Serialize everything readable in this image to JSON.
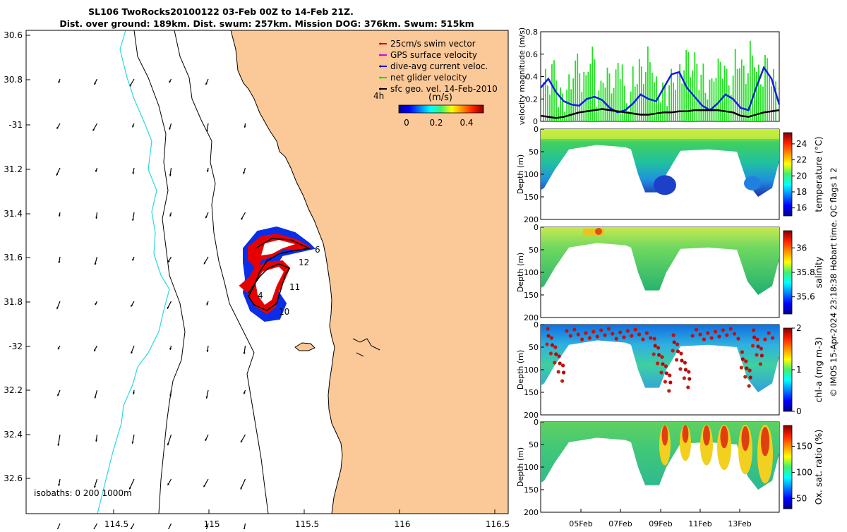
{
  "title": {
    "line1": "SL106 TwoRocks20100122 03-Feb 00Z to 14-Feb 21Z.",
    "line2": "Dist. over ground: 189km. Dist. swum: 257km. Mission DOG: 376km. Swum: 515km"
  },
  "map": {
    "lat_labels": [
      "30.6",
      "30.8",
      "-31",
      "31.2",
      "31.4",
      "31.6",
      "31.8",
      "-32",
      "32.2",
      "32.4",
      "32.6"
    ],
    "lon_labels": [
      "114.5",
      "115",
      "115.5",
      "116",
      "116.5"
    ],
    "lon_range": [
      114.0,
      116.55
    ],
    "lat_range": [
      -32.75,
      -30.55
    ],
    "legend": [
      {
        "label": "25cm/s swim vector",
        "color": "#e00000"
      },
      {
        "label": "GPS surface velocity",
        "color": "#e000e0"
      },
      {
        "label": "dive-avg current veloc.",
        "color": "#0000e0"
      },
      {
        "label": "net glider velocity",
        "color": "#00e000"
      },
      {
        "label": "sfc geo. vel. 14-Feb-2010",
        "color": "#000000"
      }
    ],
    "time_step_label": "4h",
    "colorbar_unit": "(m/s)",
    "colorbar_ticks": [
      "0",
      "0.2",
      "0.4"
    ],
    "isobaths_label": "isobaths: 0   200  1000m",
    "day_labels": [
      "4",
      "6",
      "10",
      "11",
      "12"
    ],
    "colors": {
      "land": "#fbc898",
      "coast200": "#000000",
      "isobath1000": "#27d9df"
    }
  },
  "chart_data": [
    {
      "type": "line",
      "ylabel": "velocity magnitude (m/s)",
      "ylim": [
        0,
        0.8
      ],
      "yticks": [
        "0",
        "0.2",
        "0.4",
        "0.6",
        "0.8"
      ],
      "x_range": [
        "03-Feb",
        "14-Feb 21Z"
      ],
      "series": [
        {
          "color": "#0000e0",
          "values": [
            0.3,
            0.38,
            0.26,
            0.18,
            0.15,
            0.14,
            0.2,
            0.22,
            0.19,
            0.12,
            0.08,
            0.1,
            0.16,
            0.24,
            0.2,
            0.18,
            0.3,
            0.42,
            0.44,
            0.3,
            0.22,
            0.14,
            0.1,
            0.16,
            0.24,
            0.2,
            0.12,
            0.1,
            0.3,
            0.48,
            0.38,
            0.15
          ]
        },
        {
          "color": "#000000",
          "values": [
            0.05,
            0.04,
            0.03,
            0.04,
            0.06,
            0.08,
            0.09,
            0.1,
            0.11,
            0.1,
            0.09,
            0.08,
            0.07,
            0.06,
            0.06,
            0.07,
            0.08,
            0.08,
            0.09,
            0.09,
            0.1,
            0.1,
            0.1,
            0.1,
            0.09,
            0.08,
            0.05,
            0.04,
            0.06,
            0.08,
            0.09,
            0.1
          ]
        },
        {
          "color": "#00e000",
          "values": [
            0.35,
            0.45,
            0.2,
            0.3,
            0.5,
            0.35,
            0.55,
            0.25,
            0.4,
            0.35,
            0.5,
            0.2,
            0.4,
            0.45,
            0.55,
            0.3,
            0.25,
            0.35,
            0.4,
            0.55,
            0.5,
            0.4,
            0.3,
            0.45,
            0.5,
            0.35,
            0.55,
            0.45,
            0.6,
            0.4,
            0.5,
            0.35
          ]
        }
      ]
    },
    {
      "type": "heatmap",
      "ylabel": "Depth (m)",
      "ylim": [
        0,
        200
      ],
      "yticks": [
        "0",
        "50",
        "100",
        "150",
        "200"
      ],
      "colorbar_label": "temperature (°C)",
      "colorbar_ticks": [
        "16",
        "18",
        "20",
        "22",
        "24"
      ]
    },
    {
      "type": "heatmap",
      "ylabel": "Depth (m)",
      "ylim": [
        0,
        200
      ],
      "yticks": [
        "0",
        "50",
        "100",
        "150",
        "200"
      ],
      "colorbar_label": "salinity",
      "colorbar_ticks": [
        "35.6",
        "35.8",
        "36"
      ]
    },
    {
      "type": "heatmap",
      "ylabel": "Depth (m)",
      "ylim": [
        0,
        200
      ],
      "yticks": [
        "0",
        "50",
        "100",
        "150",
        "200"
      ],
      "colorbar_label": "chl-a (mg m-3)",
      "colorbar_ticks": [
        "0",
        "1",
        "2"
      ]
    },
    {
      "type": "heatmap",
      "ylabel": "Depth (m)",
      "ylim": [
        0,
        200
      ],
      "yticks": [
        "0",
        "50",
        "100",
        "150",
        "200"
      ],
      "xticks": [
        "05Feb",
        "07Feb",
        "09Feb",
        "11Feb",
        "13Feb"
      ],
      "colorbar_label": "Ox. sat. ratio (%)",
      "colorbar_ticks": [
        "50",
        "100",
        "150"
      ]
    }
  ],
  "footer": "© IMOS 15-Apr-2024 23:18:38 Hobart time. QC flags 1  2"
}
